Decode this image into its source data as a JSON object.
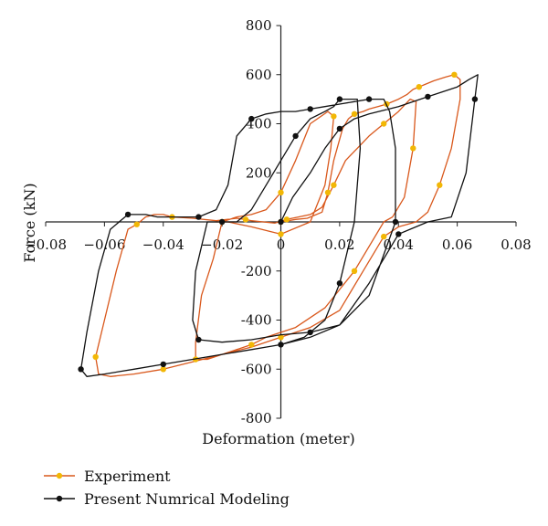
{
  "chart_data": {
    "type": "line",
    "title": "",
    "xlabel": "Deformation (meter)",
    "ylabel": "Force (kN)",
    "xlim": [
      -0.08,
      0.08
    ],
    "ylim": [
      -800,
      800
    ],
    "x_ticks": [
      -0.08,
      -0.06,
      -0.04,
      -0.02,
      0,
      0.02,
      0.04,
      0.06,
      0.08
    ],
    "x_tick_labels": [
      "−0.08",
      "−0.06",
      "−0.04",
      "−0.02",
      "0",
      "0.02",
      "0.04",
      "0.06",
      "0.08"
    ],
    "y_ticks": [
      -800,
      -600,
      -400,
      -200,
      200,
      400,
      600,
      800
    ],
    "y_tick_labels": [
      "-800",
      "-600",
      "-400",
      "-200",
      "200",
      "400",
      "600",
      "800"
    ],
    "grid": false,
    "legend": "bottom-left",
    "series": [
      {
        "name": "Experiment",
        "color": "#d9581c",
        "marker_color": "#f2b705",
        "x": [
          0,
          0.005,
          0.009,
          0.014,
          0.016,
          0.018,
          0.021,
          0.023,
          0.025,
          0.028,
          0.03,
          0.033,
          0.036,
          0.04,
          0.043,
          0.045,
          0.047,
          0.049,
          0.052,
          0.056,
          0.059,
          0.061,
          0.061,
          0.058,
          0.054,
          0.05,
          0.046,
          0.04,
          0.035,
          0.028,
          0.02,
          0.01,
          0,
          -0.01,
          -0.02,
          -0.03,
          -0.04,
          -0.05,
          -0.058,
          -0.062,
          -0.063,
          -0.06,
          -0.056,
          -0.052,
          -0.049,
          -0.046,
          -0.043,
          -0.04,
          -0.037,
          -0.03,
          -0.022,
          -0.015,
          -0.012,
          -0.01,
          -0.006,
          -0.002,
          0.002,
          0.006,
          0.01,
          0.014,
          0.018,
          0.022,
          0.026,
          0.03,
          0.035,
          0.04,
          0.044,
          0.046,
          0.045,
          0.042,
          0.038,
          0.035,
          0.025,
          0.015,
          0.005,
          -0.005,
          -0.01,
          -0.015,
          -0.02,
          -0.025,
          -0.029,
          -0.029,
          -0.027,
          -0.023,
          -0.02,
          -0.015,
          -0.01,
          -0.005,
          0,
          0.005,
          0.01,
          0.016,
          0.018,
          0.017,
          0.015,
          0.01,
          0,
          -0.01,
          -0.018,
          -0.022
        ],
        "y": [
          0,
          10,
          15,
          40,
          120,
          250,
          380,
          420,
          440,
          450,
          460,
          470,
          480,
          500,
          520,
          540,
          550,
          560,
          575,
          590,
          600,
          580,
          500,
          300,
          150,
          40,
          0,
          -20,
          -60,
          -200,
          -360,
          -430,
          -470,
          -510,
          -540,
          -570,
          -600,
          -620,
          -630,
          -620,
          -550,
          -400,
          -200,
          -30,
          -10,
          20,
          30,
          30,
          20,
          15,
          5,
          15,
          10,
          5,
          0,
          -5,
          10,
          20,
          30,
          60,
          150,
          250,
          300,
          350,
          400,
          450,
          500,
          490,
          300,
          100,
          20,
          0,
          -200,
          -350,
          -430,
          -470,
          -500,
          -520,
          -540,
          -560,
          -560,
          -490,
          -300,
          -150,
          0,
          20,
          30,
          50,
          120,
          250,
          400,
          450,
          430,
          300,
          150,
          0,
          -50,
          -20,
          0,
          0
        ]
      },
      {
        "name": "Present Numrical Modeling",
        "color": "#111111",
        "marker_color": "#111111",
        "x": [
          0,
          0.004,
          0.01,
          0.015,
          0.02,
          0.025,
          0.03,
          0.04,
          0.05,
          0.06,
          0.064,
          0.067,
          0.066,
          0.063,
          0.058,
          0.05,
          0.04,
          0.03,
          0.02,
          0.01,
          0,
          -0.01,
          -0.02,
          -0.03,
          -0.04,
          -0.05,
          -0.06,
          -0.066,
          -0.068,
          -0.066,
          -0.062,
          -0.058,
          -0.052,
          -0.046,
          -0.042,
          -0.035,
          -0.028,
          -0.022,
          -0.018,
          -0.015,
          -0.01,
          -0.005,
          0,
          0.005,
          0.01,
          0.015,
          0.02,
          0.025,
          0.03,
          0.035,
          0.037,
          0.039,
          0.039,
          0.036,
          0.03,
          0.02,
          0.01,
          0,
          -0.01,
          -0.02,
          -0.028,
          -0.03,
          -0.029,
          -0.025,
          -0.02,
          -0.015,
          -0.01,
          -0.005,
          0.005,
          0.01,
          0.015,
          0.018,
          0.02,
          0.026,
          0.027,
          0.025,
          0.02,
          0.015,
          0.008,
          0
        ],
        "y": [
          0,
          100,
          200,
          300,
          380,
          420,
          440,
          470,
          510,
          550,
          580,
          600,
          500,
          200,
          20,
          0,
          -50,
          -250,
          -420,
          -470,
          -500,
          -520,
          -540,
          -560,
          -580,
          -600,
          -620,
          -630,
          -600,
          -450,
          -200,
          -30,
          30,
          30,
          20,
          20,
          20,
          50,
          150,
          350,
          420,
          440,
          450,
          450,
          460,
          470,
          480,
          490,
          500,
          500,
          450,
          300,
          0,
          -100,
          -300,
          -420,
          -450,
          -460,
          -480,
          -490,
          -480,
          -400,
          -200,
          0,
          0,
          0,
          50,
          150,
          350,
          420,
          450,
          470,
          500,
          500,
          300,
          0,
          -250,
          -400,
          -470,
          -500
        ]
      }
    ]
  },
  "legend": {
    "items": [
      {
        "label": "Experiment",
        "color": "#d9581c",
        "marker_color": "#f2b705"
      },
      {
        "label": "Present Numrical Modeling",
        "color": "#111111",
        "marker_color": "#111111"
      }
    ]
  }
}
